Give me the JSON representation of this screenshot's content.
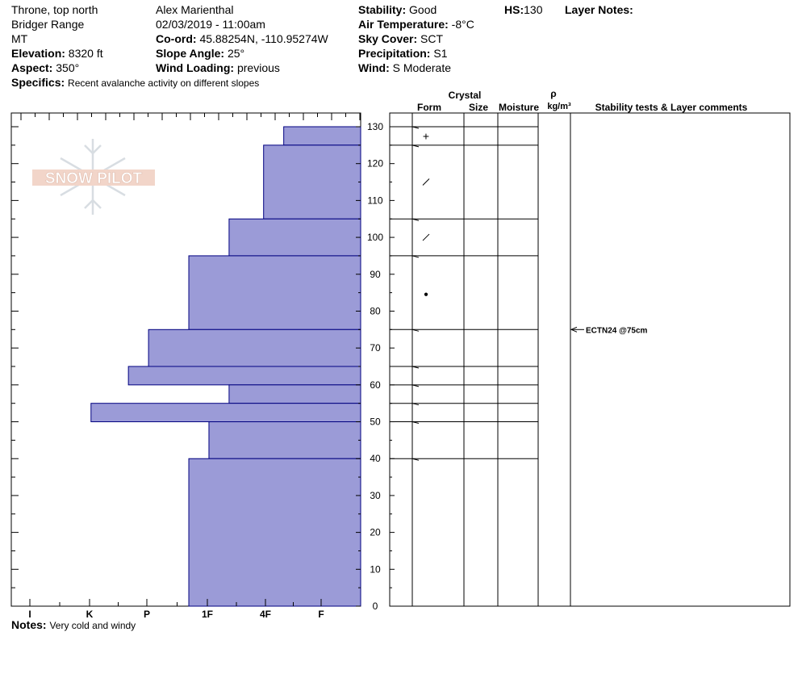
{
  "header": {
    "location": "Throne, top north",
    "range": "Bridger Range",
    "state": "MT",
    "elevation_label": "Elevation:",
    "elevation_value": "8320 ft",
    "aspect_label": "Aspect:",
    "aspect_value": "350°",
    "specifics_label": "Specifics:",
    "specifics_value": "Recent avalanche activity on different slopes",
    "observer": "Alex Marienthal",
    "datetime": "02/03/2019 - 11:00am",
    "coord_label": "Co-ord:",
    "coord_value": "45.88254N, -110.95274W",
    "slope_label": "Slope Angle:",
    "slope_value": "25°",
    "wind_loading_label": "Wind Loading:",
    "wind_loading_value": "previous",
    "stability_label": "Stability:",
    "stability_value": "Good",
    "air_temp_label": "Air Temperature:",
    "air_temp_value": "-8°C",
    "sky_label": "Sky Cover:",
    "sky_value": "SCT",
    "precip_label": "Precipitation:",
    "precip_value": "S1",
    "wind_label": "Wind:",
    "wind_value": "S Moderate",
    "hs_label": "HS:",
    "hs_value": "130",
    "layer_notes_label": "Layer Notes:"
  },
  "notes_label": "Notes:",
  "notes_value": "Very cold and windy",
  "logo_text": "SNOW PILOT",
  "columns": {
    "crystal": "Crystal",
    "form": "Form",
    "size": "Size",
    "moisture": "Moisture",
    "rho": "ρ",
    "density_unit": "kg/m³",
    "comments": "Stability tests & Layer comments"
  },
  "colors": {
    "hardness_fill": "#9b9bd7",
    "hardness_stroke": "#000080"
  },
  "chart_data": {
    "type": "bar",
    "orientation": "horizontal",
    "y_axis": {
      "label": "",
      "range": [
        0,
        130
      ],
      "ticks": [
        0,
        10,
        20,
        30,
        40,
        50,
        60,
        70,
        80,
        90,
        100,
        110,
        120,
        130
      ],
      "unit": "cm"
    },
    "x_axis": {
      "label": "",
      "categories": [
        "I",
        "K",
        "P",
        "1F",
        "4F",
        "F"
      ],
      "direction": "hardness increasing to the left"
    },
    "layers": [
      {
        "top": 130,
        "bottom": 125,
        "hardness": 0.65
      },
      {
        "top": 125,
        "bottom": 105,
        "hardness": 1.0
      },
      {
        "top": 105,
        "bottom": 95,
        "hardness": 1.6
      },
      {
        "top": 95,
        "bottom": 75,
        "hardness": 2.3
      },
      {
        "top": 75,
        "bottom": 65,
        "hardness": 3.0
      },
      {
        "top": 65,
        "bottom": 60,
        "hardness": 3.35
      },
      {
        "top": 60,
        "bottom": 55,
        "hardness": 1.6
      },
      {
        "top": 55,
        "bottom": 50,
        "hardness": 4.0
      },
      {
        "top": 50,
        "bottom": 40,
        "hardness": 1.95
      },
      {
        "top": 40,
        "bottom": 0,
        "hardness": 2.3
      }
    ],
    "grain_symbols": [
      {
        "depth": 127.5,
        "symbol": "+"
      },
      {
        "depth": 115,
        "symbol": "/"
      },
      {
        "depth": 100,
        "symbol": "/"
      },
      {
        "depth": 85,
        "symbol": "●"
      }
    ],
    "stability_tests": [
      {
        "depth": 75,
        "text": "ECTN24 @75cm"
      }
    ]
  }
}
